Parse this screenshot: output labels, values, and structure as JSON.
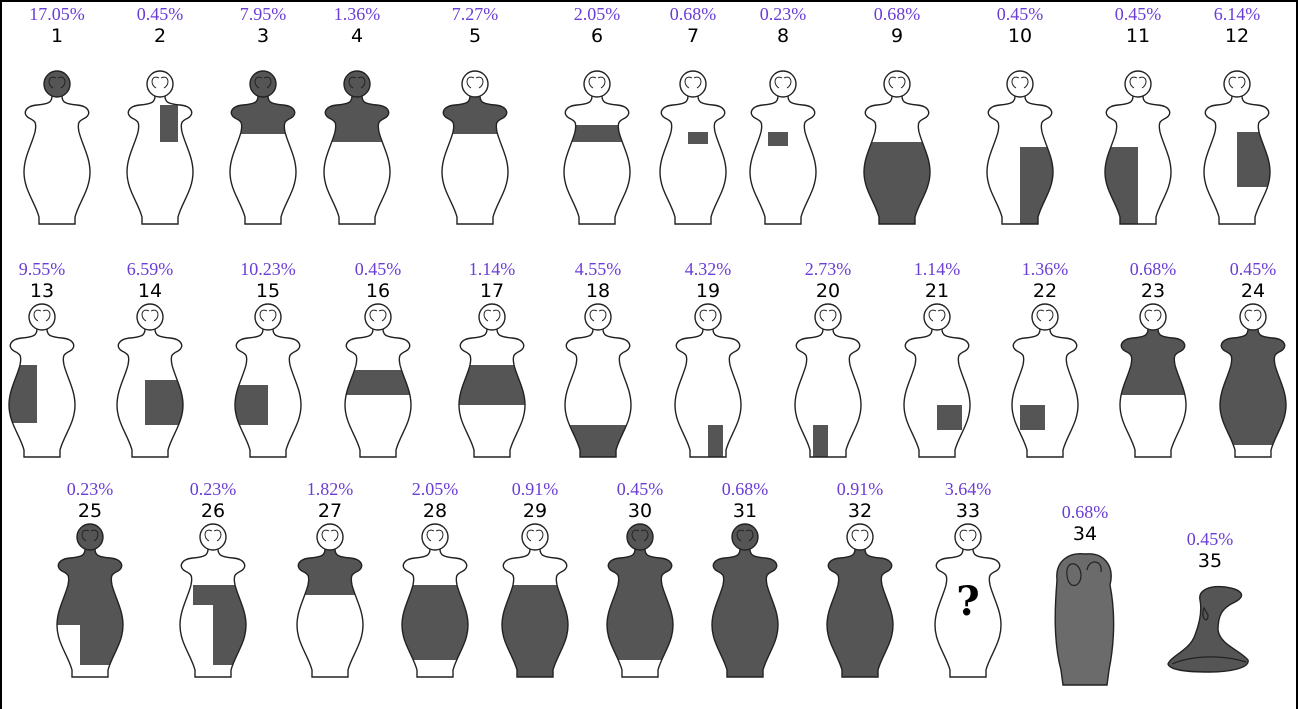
{
  "items": [
    {
      "percent": "17.05%",
      "number": "1"
    },
    {
      "percent": "0.45%",
      "number": "2"
    },
    {
      "percent": "7.95%",
      "number": "3"
    },
    {
      "percent": "1.36%",
      "number": "4"
    },
    {
      "percent": "7.27%",
      "number": "5"
    },
    {
      "percent": "2.05%",
      "number": "6"
    },
    {
      "percent": "0.68%",
      "number": "7"
    },
    {
      "percent": "0.23%",
      "number": "8"
    },
    {
      "percent": "0.68%",
      "number": "9"
    },
    {
      "percent": "0.45%",
      "number": "10"
    },
    {
      "percent": "0.45%",
      "number": "11"
    },
    {
      "percent": "6.14%",
      "number": "12"
    },
    {
      "percent": "9.55%",
      "number": "13"
    },
    {
      "percent": "6.59%",
      "number": "14"
    },
    {
      "percent": "10.23%",
      "number": "15"
    },
    {
      "percent": "0.45%",
      "number": "16"
    },
    {
      "percent": "1.14%",
      "number": "17"
    },
    {
      "percent": "4.55%",
      "number": "18"
    },
    {
      "percent": "4.32%",
      "number": "19"
    },
    {
      "percent": "2.73%",
      "number": "20"
    },
    {
      "percent": "1.14%",
      "number": "21"
    },
    {
      "percent": "1.36%",
      "number": "22"
    },
    {
      "percent": "0.68%",
      "number": "23"
    },
    {
      "percent": "0.45%",
      "number": "24"
    },
    {
      "percent": "0.23%",
      "number": "25"
    },
    {
      "percent": "0.23%",
      "number": "26"
    },
    {
      "percent": "1.82%",
      "number": "27"
    },
    {
      "percent": "2.05%",
      "number": "28"
    },
    {
      "percent": "0.91%",
      "number": "29"
    },
    {
      "percent": "0.45%",
      "number": "30"
    },
    {
      "percent": "0.68%",
      "number": "31"
    },
    {
      "percent": "0.91%",
      "number": "32"
    },
    {
      "percent": "3.64%",
      "number": "33",
      "mark": "?"
    },
    {
      "percent": "0.68%",
      "number": "34"
    },
    {
      "percent": "0.45%",
      "number": "35"
    }
  ]
}
